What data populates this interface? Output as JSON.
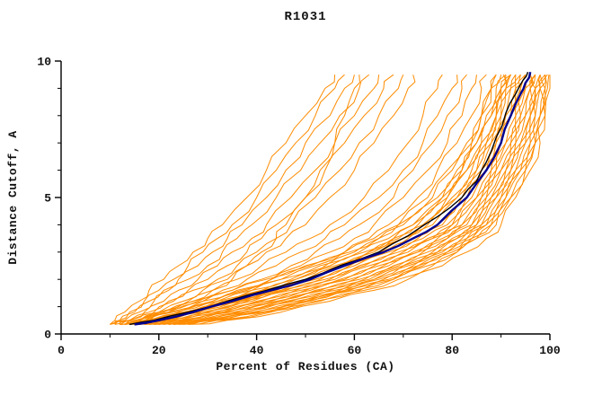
{
  "title": "R1031",
  "chart_data": {
    "type": "line",
    "title": "R1031",
    "xlabel": "Percent of Residues (CA)",
    "ylabel": "Distance Cutoff, A",
    "xlim": [
      0,
      100
    ],
    "ylim": [
      0,
      10
    ],
    "xticks": [
      0,
      20,
      40,
      60,
      80,
      100
    ],
    "xticks_minor": [
      10,
      30,
      50,
      70,
      90
    ],
    "yticks": [
      0,
      5,
      10
    ],
    "yticks_minor": [
      1,
      2,
      3,
      4,
      6,
      7,
      8,
      9
    ],
    "grid": false,
    "legend": "none",
    "colors": {
      "background": "#ffffff",
      "axis": "#000000",
      "text": "#111111",
      "predictions": "#ff8c00",
      "navy_line": "#000090",
      "black_line": "#000000"
    },
    "y_levels": [
      0.35,
      0.5,
      0.8,
      1.2,
      1.6,
      2.0,
      2.5,
      3.0,
      3.5,
      4.0,
      5.0,
      6.0,
      7.0,
      8.0,
      9.0,
      9.5
    ],
    "orange_series_x": [
      [
        12,
        16,
        22,
        29,
        36,
        43,
        51,
        59,
        65,
        70,
        77,
        81,
        84,
        86,
        88,
        90
      ],
      [
        13,
        17,
        23,
        31,
        38,
        45,
        53,
        61,
        67,
        72,
        78,
        82,
        85,
        87,
        89,
        91
      ],
      [
        12,
        17,
        24,
        32,
        39,
        47,
        55,
        62,
        68,
        73,
        79,
        83,
        86,
        88,
        90,
        91
      ],
      [
        14,
        18,
        25,
        33,
        41,
        48,
        56,
        63,
        69,
        74,
        80,
        84,
        87,
        89,
        90,
        92
      ],
      [
        13,
        18,
        26,
        34,
        42,
        50,
        57,
        64,
        70,
        75,
        81,
        85,
        87,
        89,
        91,
        92
      ],
      [
        15,
        19,
        26,
        35,
        43,
        51,
        58,
        65,
        71,
        76,
        81,
        85,
        88,
        90,
        91,
        93
      ],
      [
        14,
        20,
        27,
        36,
        44,
        52,
        59,
        66,
        72,
        77,
        82,
        86,
        88,
        90,
        92,
        93
      ],
      [
        16,
        21,
        28,
        37,
        45,
        53,
        60,
        67,
        73,
        78,
        83,
        86,
        89,
        91,
        92,
        94
      ],
      [
        15,
        21,
        29,
        38,
        46,
        54,
        61,
        68,
        74,
        79,
        83,
        87,
        89,
        91,
        93,
        94
      ],
      [
        17,
        22,
        30,
        39,
        47,
        55,
        62,
        69,
        75,
        80,
        84,
        87,
        90,
        92,
        93,
        95
      ],
      [
        16,
        23,
        31,
        40,
        48,
        56,
        63,
        70,
        76,
        80,
        85,
        88,
        90,
        92,
        94,
        95
      ],
      [
        18,
        24,
        32,
        41,
        49,
        57,
        64,
        71,
        76,
        81,
        85,
        88,
        91,
        93,
        94,
        95
      ],
      [
        17,
        24,
        33,
        42,
        50,
        58,
        65,
        72,
        77,
        82,
        86,
        89,
        91,
        93,
        95,
        96
      ],
      [
        19,
        25,
        33,
        43,
        51,
        59,
        66,
        73,
        78,
        82,
        86,
        89,
        92,
        94,
        95,
        96
      ],
      [
        18,
        26,
        34,
        44,
        52,
        60,
        67,
        73,
        79,
        83,
        87,
        90,
        92,
        94,
        96,
        96
      ],
      [
        20,
        26,
        35,
        45,
        53,
        61,
        68,
        74,
        79,
        84,
        87,
        90,
        93,
        95,
        96,
        97
      ],
      [
        19,
        27,
        36,
        45,
        54,
        62,
        69,
        75,
        80,
        84,
        88,
        91,
        93,
        95,
        96,
        97
      ],
      [
        21,
        28,
        37,
        46,
        55,
        63,
        70,
        76,
        81,
        85,
        88,
        91,
        94,
        96,
        97,
        97
      ],
      [
        20,
        28,
        38,
        47,
        56,
        64,
        70,
        77,
        81,
        85,
        89,
        92,
        94,
        96,
        97,
        98
      ],
      [
        22,
        29,
        38,
        48,
        57,
        64,
        71,
        77,
        82,
        86,
        89,
        92,
        95,
        96,
        97,
        98
      ],
      [
        21,
        30,
        39,
        49,
        58,
        65,
        72,
        78,
        83,
        86,
        90,
        93,
        95,
        97,
        98,
        98
      ],
      [
        23,
        30,
        40,
        50,
        58,
        66,
        73,
        79,
        83,
        87,
        90,
        93,
        96,
        97,
        98,
        99
      ],
      [
        22,
        31,
        41,
        50,
        59,
        67,
        73,
        79,
        84,
        87,
        91,
        94,
        96,
        98,
        98,
        99
      ],
      [
        24,
        32,
        42,
        51,
        60,
        68,
        74,
        80,
        84,
        88,
        91,
        94,
        97,
        98,
        99,
        99
      ],
      [
        23,
        32,
        42,
        52,
        61,
        68,
        75,
        81,
        85,
        88,
        92,
        95,
        97,
        98,
        99,
        99.5
      ],
      [
        25,
        33,
        43,
        53,
        62,
        69,
        76,
        81,
        85,
        89,
        92,
        95,
        97,
        99,
        99.5,
        99.8
      ],
      [
        10,
        11,
        13,
        16,
        18,
        21,
        24,
        27,
        30,
        33,
        38,
        42,
        46,
        50,
        54,
        56
      ],
      [
        10,
        12,
        14,
        17,
        20,
        23,
        26,
        29,
        32,
        35,
        40,
        44,
        48,
        52,
        56,
        58
      ],
      [
        11,
        12,
        15,
        18,
        21,
        24,
        28,
        31,
        34,
        37,
        42,
        46,
        50,
        55,
        58,
        60
      ],
      [
        11,
        13,
        16,
        19,
        22,
        26,
        30,
        33,
        36,
        39,
        44,
        49,
        53,
        57,
        61,
        63
      ],
      [
        12,
        14,
        17,
        21,
        24,
        28,
        32,
        35,
        39,
        42,
        47,
        52,
        56,
        60,
        64,
        65
      ],
      [
        12,
        14,
        18,
        22,
        26,
        30,
        34,
        38,
        41,
        44,
        50,
        54,
        58,
        62,
        66,
        68
      ],
      [
        13,
        15,
        19,
        23,
        27,
        32,
        36,
        40,
        44,
        47,
        52,
        57,
        61,
        65,
        69,
        70
      ],
      [
        13,
        16,
        20,
        25,
        29,
        34,
        38,
        42,
        46,
        50,
        55,
        60,
        64,
        68,
        71,
        72
      ],
      [
        12,
        15,
        20,
        26,
        31,
        36,
        41,
        46,
        51,
        55,
        62,
        67,
        71,
        74,
        77,
        78
      ],
      [
        13,
        16,
        21,
        27,
        33,
        38,
        44,
        49,
        54,
        58,
        65,
        70,
        74,
        77,
        80,
        81
      ],
      [
        13,
        17,
        22,
        29,
        35,
        41,
        47,
        52,
        57,
        61,
        68,
        72,
        76,
        79,
        82,
        83
      ],
      [
        14,
        18,
        24,
        31,
        37,
        43,
        49,
        55,
        60,
        64,
        70,
        75,
        79,
        82,
        84,
        85
      ],
      [
        14,
        19,
        25,
        32,
        39,
        45,
        52,
        58,
        63,
        67,
        73,
        77,
        81,
        84,
        86,
        87
      ],
      [
        15,
        20,
        27,
        34,
        41,
        48,
        54,
        60,
        65,
        69,
        75,
        79,
        83,
        86,
        88,
        89
      ],
      [
        15,
        20,
        28,
        36,
        43,
        50,
        57,
        63,
        68,
        72,
        78,
        82,
        85,
        88,
        90,
        90.5
      ],
      [
        16,
        21,
        29,
        37,
        45,
        52,
        59,
        65,
        70,
        74,
        79,
        83,
        86,
        89,
        91,
        92
      ],
      [
        15,
        18,
        22,
        27,
        31,
        35,
        38,
        41,
        44,
        46,
        50,
        53,
        56,
        58,
        60,
        61
      ],
      [
        10,
        14,
        20,
        28,
        35,
        42,
        50,
        58,
        64,
        69,
        76,
        80,
        84,
        86,
        88,
        89
      ],
      [
        26,
        34,
        45,
        55,
        64,
        71,
        78,
        83,
        87,
        90,
        93,
        96,
        98,
        99,
        100,
        100
      ]
    ],
    "highlight_series": [
      {
        "name": "black-line",
        "color": "#000000",
        "width": 1.4,
        "points": [
          [
            14,
            0.35
          ],
          [
            19,
            0.5
          ],
          [
            26,
            0.8
          ],
          [
            34,
            1.2
          ],
          [
            42,
            1.6
          ],
          [
            50,
            2.0
          ],
          [
            57,
            2.5
          ],
          [
            65,
            3.0
          ],
          [
            71,
            3.6
          ],
          [
            77,
            4.3
          ],
          [
            82,
            5.0
          ],
          [
            85,
            5.6
          ],
          [
            87,
            6.3
          ],
          [
            89,
            7.2
          ],
          [
            91,
            8.1
          ],
          [
            93,
            8.8
          ],
          [
            94.5,
            9.3
          ],
          [
            95.5,
            9.6
          ]
        ]
      },
      {
        "name": "navy-line",
        "color": "#000090",
        "width": 2.4,
        "points": [
          [
            15,
            0.35
          ],
          [
            20,
            0.5
          ],
          [
            27,
            0.8
          ],
          [
            35,
            1.2
          ],
          [
            43,
            1.6
          ],
          [
            51,
            2.0
          ],
          [
            58,
            2.5
          ],
          [
            66,
            3.0
          ],
          [
            72,
            3.5
          ],
          [
            77,
            4.0
          ],
          [
            83,
            5.0
          ],
          [
            87,
            6.0
          ],
          [
            90,
            7.0
          ],
          [
            92,
            8.0
          ],
          [
            94,
            8.8
          ],
          [
            95,
            9.2
          ],
          [
            96,
            9.6
          ]
        ]
      }
    ]
  }
}
